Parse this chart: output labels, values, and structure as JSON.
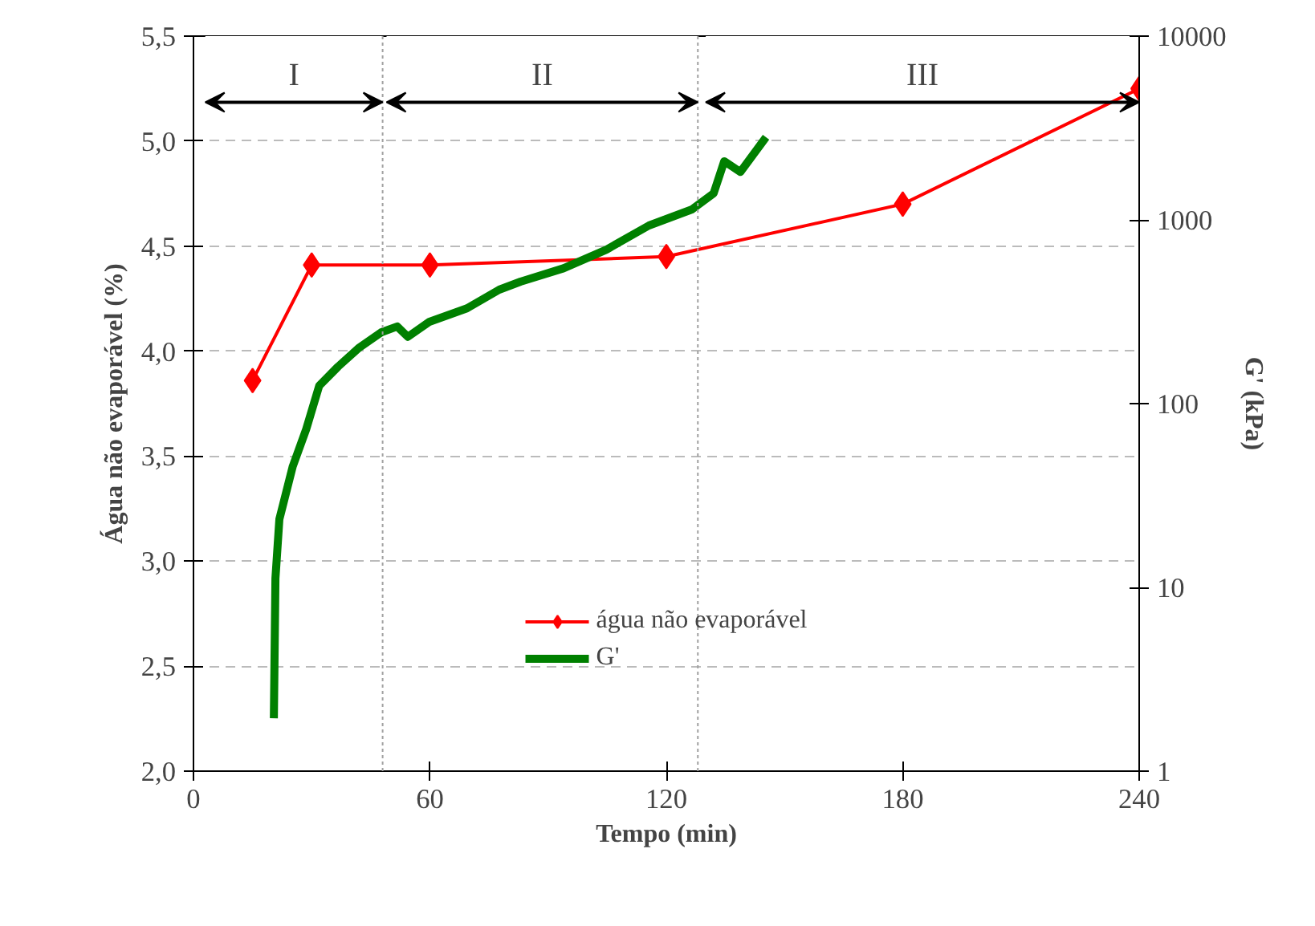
{
  "chart_data": {
    "type": "line",
    "xlabel": "Tempo (min)",
    "ylabel": "Água não evaporável (%)",
    "y2label": "G' (kPa)",
    "xlim": [
      0,
      240
    ],
    "xticks": [
      0,
      60,
      120,
      180,
      240
    ],
    "ylim": [
      2.0,
      5.5
    ],
    "yticks": [
      {
        "value": 2.0,
        "label": "2,0"
      },
      {
        "value": 2.5,
        "label": "2,5"
      },
      {
        "value": 3.0,
        "label": "3,0"
      },
      {
        "value": 3.5,
        "label": "3,5"
      },
      {
        "value": 4.0,
        "label": "4,0"
      },
      {
        "value": 4.5,
        "label": "4,5"
      },
      {
        "value": 5.0,
        "label": "5,0"
      },
      {
        "value": 5.5,
        "label": "5,5"
      }
    ],
    "y2lim": [
      1,
      10000
    ],
    "y2ticks": [
      1,
      10,
      100,
      1000,
      10000
    ],
    "log": "y2",
    "grid": "y",
    "legend": "bottom",
    "series": [
      {
        "name": "água não evaporável",
        "color": "#ff0000",
        "marker": "diamond",
        "x": [
          15,
          30,
          60,
          120,
          180,
          240
        ],
        "values": [
          3.86,
          4.41,
          4.41,
          4.45,
          4.7,
          5.25
        ]
      },
      {
        "name": "G'",
        "color": "#008000",
        "marker": "none",
        "axis": "y2",
        "x": [
          20.4,
          20.8,
          21.8,
          25.2,
          28.6,
          31.9,
          36.7,
          42.1,
          47.6,
          51.7,
          54.4,
          59.9,
          69.4,
          77.6,
          83,
          93.9,
          104.8,
          115.6,
          126.5,
          132,
          134.7,
          138.8,
          145.3
        ],
        "values": [
          1.94,
          11.2,
          23.5,
          45.6,
          72.5,
          125,
          159,
          202,
          244,
          263,
          231,
          279,
          330,
          417,
          461,
          545,
          689,
          932,
          1140,
          1394,
          2085,
          1822,
          2818
        ]
      }
    ],
    "ref_lines": [
      {
        "axis": "x",
        "value": 48,
        "color": "#a0a0a0",
        "line_style": "dotted"
      },
      {
        "axis": "x",
        "value": 128,
        "color": "#a0a0a0",
        "line_style": "dotted"
      }
    ],
    "bands": [
      {
        "axis": "x",
        "from": 3,
        "to": 48,
        "label": "I",
        "color": "#ffffff"
      },
      {
        "axis": "x",
        "from": 49,
        "to": 128,
        "label": "II",
        "color": "#ffffff"
      },
      {
        "axis": "x",
        "from": 130,
        "to": 240,
        "label": "III",
        "color": "#ffffff"
      }
    ]
  }
}
